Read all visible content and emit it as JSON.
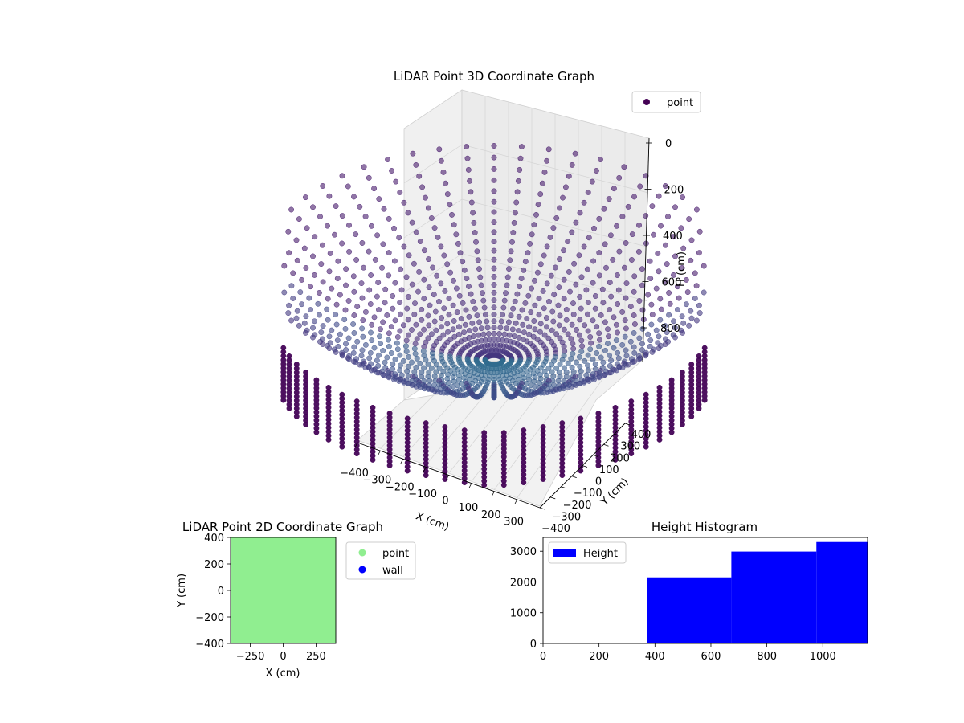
{
  "charts": [
    {
      "id": "scatter3d",
      "chart_data": {
        "type": "scatter",
        "projection": "3d",
        "title": "LiDAR Point 3D Coordinate Graph",
        "xlabel": "X (cm)",
        "ylabel": "Y (cm)",
        "zlabel": "H (cm)",
        "xlim": [
          -400,
          400
        ],
        "ylim": [
          -400,
          400
        ],
        "zlim": [
          0,
          1000
        ],
        "x_ticks": [
          "−400",
          "−300",
          "−200",
          "−100",
          "0",
          "100",
          "200",
          "300"
        ],
        "y_ticks": [
          "−400",
          "−300",
          "−200",
          "−100",
          "0",
          "100",
          "200",
          "300",
          "400"
        ],
        "z_ticks": [
          "0",
          "200",
          "400",
          "600",
          "800"
        ],
        "z_inverted": true,
        "grid": true,
        "legend": {
          "placement": "top-right",
          "entries": [
            {
              "label": "point",
              "color": "#440154"
            }
          ]
        },
        "colormap": "viridis",
        "shape": "inverted dome of radial point rings",
        "color": "#440154"
      }
    },
    {
      "id": "scatter2d",
      "chart_data": {
        "type": "scatter",
        "title": "LiDAR Point 2D Coordinate Graph",
        "xlabel": "X (cm)",
        "ylabel": "Y (cm)",
        "xlim": [
          -400,
          400
        ],
        "ylim": [
          -400,
          400
        ],
        "x_ticks": [
          -250,
          0,
          250
        ],
        "y_ticks": [
          -400,
          -200,
          0,
          200,
          400
        ],
        "fill_color": "#90ee90",
        "legend": {
          "placement": "outside-right",
          "entries": [
            {
              "label": "point",
              "color": "#90ee90"
            },
            {
              "label": "wall",
              "color": "#0000ff"
            }
          ]
        }
      }
    },
    {
      "id": "histogram",
      "chart_data": {
        "type": "bar",
        "title": "Height Histogram",
        "xlabel": "",
        "ylabel": "",
        "xlim": [
          0,
          1160
        ],
        "ylim": [
          0,
          3450
        ],
        "x_ticks": [
          0,
          200,
          400,
          600,
          800,
          1000
        ],
        "y_ticks": [
          0,
          1000,
          2000,
          3000
        ],
        "color": "#0000ff",
        "legend": {
          "placement": "top-left",
          "entries": [
            {
              "label": "Height",
              "color": "#0000ff"
            }
          ]
        },
        "bins": [
          {
            "start": 373,
            "end": 673,
            "value": 2150
          },
          {
            "start": 673,
            "end": 977,
            "value": 2990
          },
          {
            "start": 977,
            "end": 1160,
            "value": 3300
          }
        ]
      }
    }
  ]
}
